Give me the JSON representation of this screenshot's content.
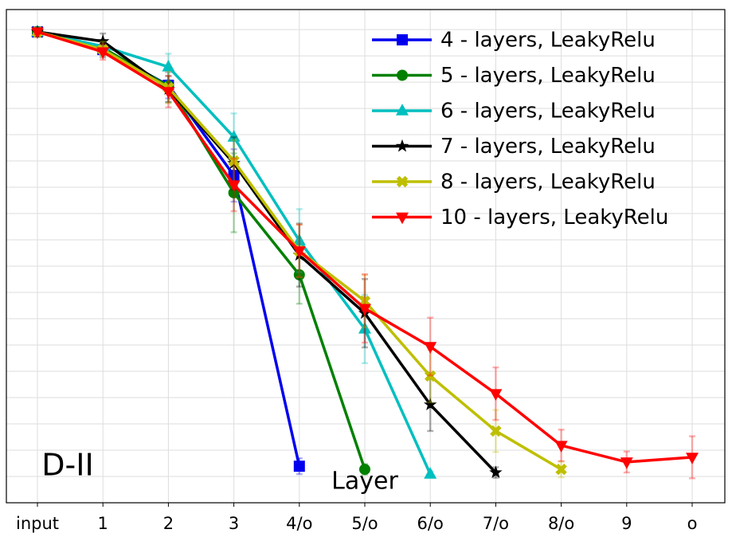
{
  "chart_data": {
    "type": "line",
    "xlabel": "Layer",
    "annotation": "D-II",
    "categories": [
      "input",
      "1",
      "2",
      "3",
      "4/o",
      "5/o",
      "6/o",
      "7/o",
      "8/o",
      "9",
      "o"
    ],
    "ylim": [
      0,
      18.76
    ],
    "yticks": [
      1,
      2,
      3,
      4,
      5,
      6,
      7,
      8,
      9,
      10,
      11,
      12,
      13,
      14,
      15,
      16,
      17,
      18
    ],
    "grid": true,
    "legend": "upper right",
    "series": [
      {
        "name": "4 - layers, LeakyRelu",
        "color": "#0000ee",
        "marker": "square",
        "values": [
          17.91,
          17.24,
          15.88,
          12.45,
          1.39,
          null,
          null,
          null,
          null,
          null,
          null
        ],
        "errors": [
          0.1,
          0.3,
          0.5,
          1.0,
          0.3,
          null,
          null,
          null,
          null,
          null,
          null
        ]
      },
      {
        "name": "5 - layers, LeakyRelu",
        "color": "#008000",
        "marker": "circle",
        "values": [
          17.91,
          17.3,
          15.85,
          11.79,
          8.67,
          1.27,
          null,
          null,
          null,
          null,
          null
        ],
        "errors": [
          0.1,
          0.3,
          0.6,
          1.5,
          1.1,
          0.2,
          null,
          null,
          null,
          null,
          null
        ]
      },
      {
        "name": "6 - layers, LeakyRelu",
        "color": "#00bfbf",
        "marker": "triangle-up",
        "values": [
          17.91,
          17.36,
          16.58,
          13.91,
          9.97,
          6.61,
          1.09,
          null,
          null,
          null,
          null
        ],
        "errors": [
          0.1,
          0.2,
          0.5,
          0.9,
          1.2,
          1.3,
          0.1,
          null,
          null,
          null,
          null
        ]
      },
      {
        "name": "7 - layers, LeakyRelu",
        "color": "#000000",
        "marker": "star",
        "values": [
          17.91,
          17.55,
          15.73,
          12.91,
          9.42,
          7.21,
          3.73,
          1.15,
          null,
          null,
          null
        ],
        "errors": [
          0.1,
          0.3,
          0.5,
          1.0,
          1.2,
          1.3,
          1.0,
          0.2,
          null,
          null,
          null
        ]
      },
      {
        "name": "8 - layers, LeakyRelu",
        "color": "#bfbf00",
        "marker": "x",
        "values": [
          17.91,
          17.24,
          15.79,
          13.0,
          9.58,
          7.67,
          4.82,
          2.73,
          1.27,
          null,
          null
        ],
        "errors": [
          0.1,
          0.3,
          0.6,
          0.8,
          1.0,
          1.0,
          1.0,
          0.8,
          0.3,
          null,
          null
        ]
      },
      {
        "name": "10 - layers, LeakyRelu",
        "color": "#ff0000",
        "marker": "triangle-down",
        "values": [
          17.91,
          17.15,
          15.64,
          12.09,
          9.58,
          7.39,
          5.94,
          4.15,
          2.18,
          1.55,
          1.73
        ],
        "errors": [
          0.1,
          0.3,
          0.6,
          1.0,
          1.0,
          1.3,
          1.1,
          1.0,
          0.6,
          0.4,
          0.8
        ]
      }
    ]
  }
}
